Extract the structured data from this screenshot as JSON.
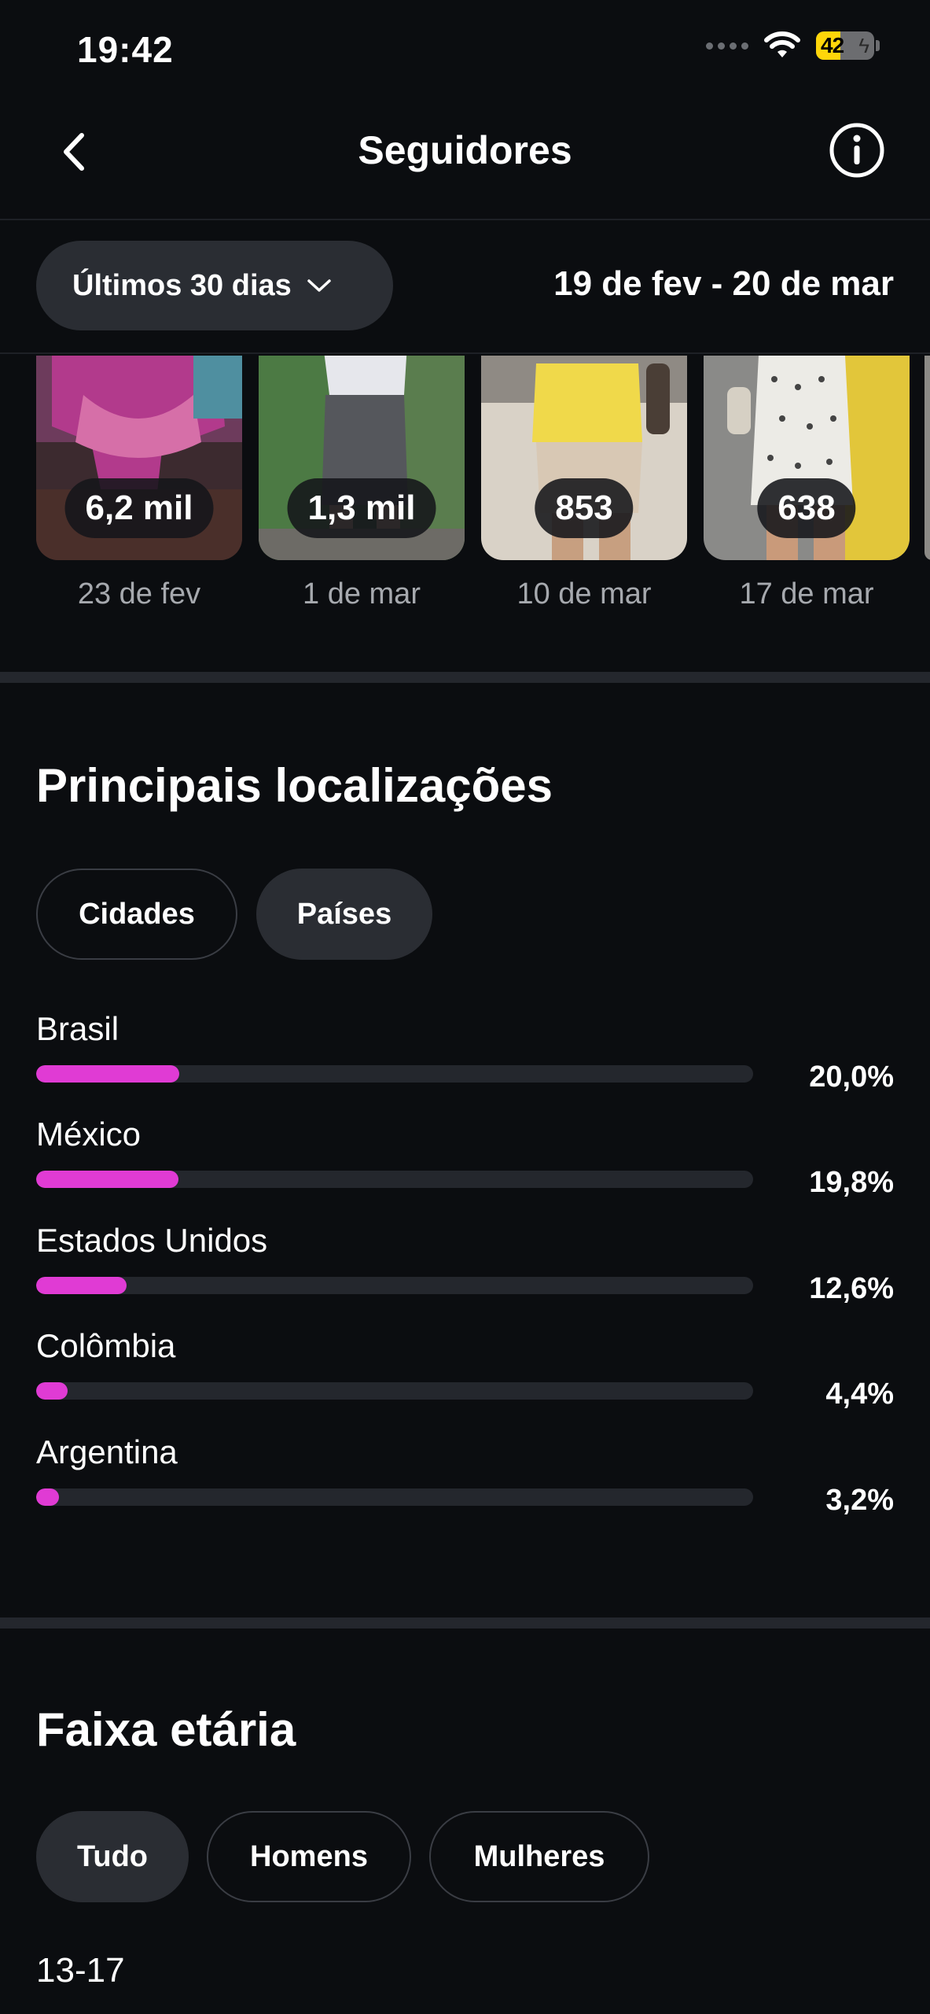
{
  "status_bar": {
    "time": "19:42",
    "battery_level": "42",
    "battery_fraction": 0.42
  },
  "header": {
    "title": "Seguidores"
  },
  "filter": {
    "range_label": "Últimos 30 dias",
    "date_range": "19 de fev - 20 de mar"
  },
  "thumbnails": [
    {
      "count": "6,2 mil",
      "date": "23 de fev"
    },
    {
      "count": "1,3 mil",
      "date": "1 de mar"
    },
    {
      "count": "853",
      "date": "10 de mar"
    },
    {
      "count": "638",
      "date": "17 de mar"
    }
  ],
  "locations": {
    "title": "Principais localizações",
    "tabs": [
      "Cidades",
      "Países"
    ],
    "active_tab": "Países",
    "items": [
      {
        "name": "Brasil",
        "percent_label": "20,0%",
        "value": 20.0
      },
      {
        "name": "México",
        "percent_label": "19,8%",
        "value": 19.8
      },
      {
        "name": "Estados Unidos",
        "percent_label": "12,6%",
        "value": 12.6
      },
      {
        "name": "Colômbia",
        "percent_label": "4,4%",
        "value": 4.4
      },
      {
        "name": "Argentina",
        "percent_label": "3,2%",
        "value": 3.2
      }
    ],
    "bar_color": "#e03bd4"
  },
  "age": {
    "title": "Faixa etária",
    "tabs": [
      "Tudo",
      "Homens",
      "Mulheres"
    ],
    "active_tab": "Tudo",
    "first_group": "13-17"
  },
  "colors": {
    "background": "#0b0d10",
    "chip": "#2a2d33",
    "accent": "#e03bd4"
  }
}
